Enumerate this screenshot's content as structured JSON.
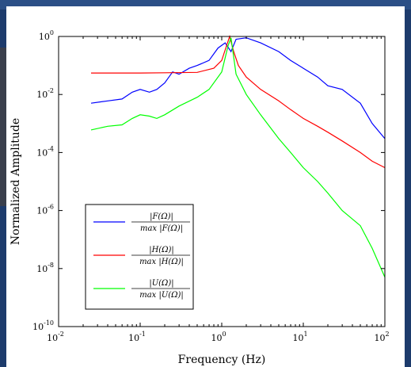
{
  "chart_data": {
    "type": "line",
    "title": "",
    "xlabel": "Frequency (Hz)",
    "ylabel": "Normalized Amplitude",
    "x_scale": "log",
    "y_scale": "log",
    "xlim": [
      0.01,
      100
    ],
    "ylim": [
      1e-10,
      1
    ],
    "grid": false,
    "legend_position": "lower-left",
    "x_ticks": [
      {
        "mantissa": "10",
        "exp": "-2",
        "value": 0.01
      },
      {
        "mantissa": "10",
        "exp": "-1",
        "value": 0.1
      },
      {
        "mantissa": "10",
        "exp": "0",
        "value": 1
      },
      {
        "mantissa": "10",
        "exp": "1",
        "value": 10
      },
      {
        "mantissa": "10",
        "exp": "2",
        "value": 100
      }
    ],
    "y_ticks": [
      {
        "mantissa": "10",
        "exp": "0",
        "value": 1
      },
      {
        "mantissa": "10",
        "exp": "-2",
        "value": 0.01
      },
      {
        "mantissa": "10",
        "exp": "-4",
        "value": 0.0001
      },
      {
        "mantissa": "10",
        "exp": "-6",
        "value": 1e-06
      },
      {
        "mantissa": "10",
        "exp": "-8",
        "value": 1e-08
      },
      {
        "mantissa": "10",
        "exp": "-10",
        "value": 1e-10
      }
    ],
    "series": [
      {
        "key": "F",
        "color": "#0000ff",
        "legend_num": "|F(Ω)|",
        "legend_den": "max |F(Ω)|",
        "x": [
          0.025,
          0.04,
          0.06,
          0.08,
          0.1,
          0.13,
          0.16,
          0.2,
          0.25,
          0.3,
          0.4,
          0.5,
          0.7,
          0.9,
          1.1,
          1.3,
          1.5,
          2,
          3,
          5,
          7,
          10,
          15,
          20,
          30,
          50,
          70,
          100
        ],
        "y": [
          0.005,
          0.006,
          0.007,
          0.012,
          0.015,
          0.012,
          0.015,
          0.025,
          0.06,
          0.05,
          0.08,
          0.1,
          0.15,
          0.4,
          0.6,
          0.3,
          0.8,
          0.9,
          0.6,
          0.3,
          0.15,
          0.08,
          0.04,
          0.02,
          0.015,
          0.005,
          0.001,
          0.0003
        ]
      },
      {
        "key": "H",
        "color": "#ff0000",
        "legend_num": "|H(Ω)|",
        "legend_den": "max |H(Ω)|",
        "x": [
          0.025,
          0.1,
          0.2,
          0.5,
          0.8,
          1.0,
          1.15,
          1.25,
          1.4,
          1.6,
          2,
          3,
          5,
          7,
          10,
          15,
          20,
          30,
          50,
          70,
          100
        ],
        "y": [
          0.055,
          0.055,
          0.056,
          0.058,
          0.08,
          0.15,
          0.5,
          1.0,
          0.3,
          0.1,
          0.04,
          0.015,
          0.006,
          0.003,
          0.0015,
          0.0008,
          0.0005,
          0.00025,
          0.0001,
          5e-05,
          3e-05
        ]
      },
      {
        "key": "U",
        "color": "#00ff00",
        "legend_num": "|U(Ω)|",
        "legend_den": "max |U(Ω)|",
        "x": [
          0.025,
          0.04,
          0.06,
          0.08,
          0.1,
          0.13,
          0.16,
          0.2,
          0.3,
          0.5,
          0.7,
          1.0,
          1.2,
          1.3,
          1.5,
          2,
          3,
          5,
          7,
          10,
          15,
          20,
          30,
          50,
          70,
          100
        ],
        "y": [
          0.0006,
          0.0008,
          0.0009,
          0.0015,
          0.002,
          0.0018,
          0.0015,
          0.002,
          0.004,
          0.008,
          0.015,
          0.06,
          0.5,
          0.9,
          0.05,
          0.01,
          0.002,
          0.0003,
          0.0001,
          3e-05,
          1e-05,
          4e-06,
          1e-06,
          3e-07,
          5e-08,
          5e-09
        ]
      }
    ]
  }
}
